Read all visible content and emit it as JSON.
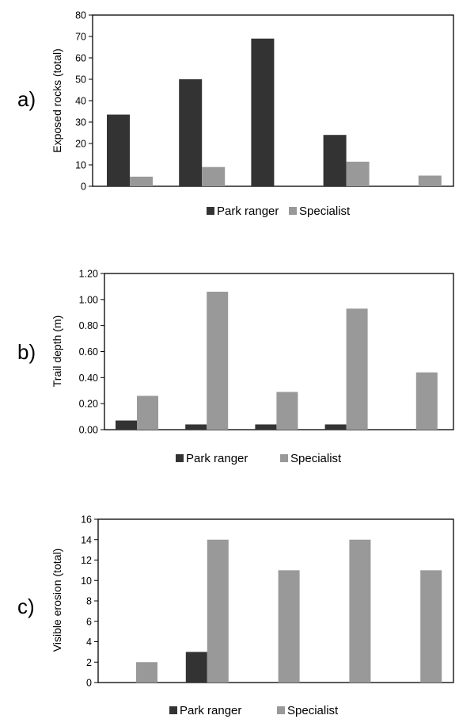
{
  "chart_data": [
    {
      "type": "bar",
      "panel_label": "a)",
      "ylabel": "Exposed rocks (total)",
      "xlabel": "",
      "ylim": [
        0,
        80
      ],
      "yticks": [
        "0",
        "10",
        "20",
        "30",
        "40",
        "50",
        "60",
        "70",
        "80"
      ],
      "categories": [
        "",
        "",
        "",
        "",
        ""
      ],
      "series": [
        {
          "name": "Park ranger",
          "color": "#333333",
          "values": [
            33.5,
            50,
            69,
            24,
            0
          ]
        },
        {
          "name": "Specialist",
          "color": "#999999",
          "values": [
            4.5,
            9,
            0,
            11.5,
            5
          ]
        }
      ],
      "legend": "bottom",
      "grid": false
    },
    {
      "type": "bar",
      "panel_label": "b)",
      "ylabel": "Trail depth (m)",
      "xlabel": "",
      "ylim": [
        0,
        1.2
      ],
      "yticks": [
        "0.00",
        "0.20",
        "0.40",
        "0.60",
        "0.80",
        "1.00",
        "1.20"
      ],
      "categories": [
        "",
        "",
        "",
        "",
        ""
      ],
      "series": [
        {
          "name": "Park ranger",
          "color": "#333333",
          "values": [
            0.07,
            0.04,
            0.04,
            0.04,
            0
          ]
        },
        {
          "name": "Specialist",
          "color": "#999999",
          "values": [
            0.26,
            1.06,
            0.29,
            0.93,
            0.44
          ]
        }
      ],
      "legend": "bottom",
      "grid": false
    },
    {
      "type": "bar",
      "panel_label": "c)",
      "ylabel": "Visible erosion (total)",
      "xlabel": "",
      "ylim": [
        0,
        16
      ],
      "yticks": [
        "0",
        "2",
        "4",
        "6",
        "8",
        "10",
        "12",
        "14",
        "16"
      ],
      "categories": [
        "",
        "",
        "",
        "",
        ""
      ],
      "series": [
        {
          "name": "Park ranger",
          "color": "#333333",
          "values": [
            0,
            3,
            0,
            0,
            0
          ]
        },
        {
          "name": "Specialist",
          "color": "#999999",
          "values": [
            2,
            14,
            11,
            14,
            11
          ]
        }
      ],
      "legend": "bottom",
      "grid": false
    }
  ]
}
